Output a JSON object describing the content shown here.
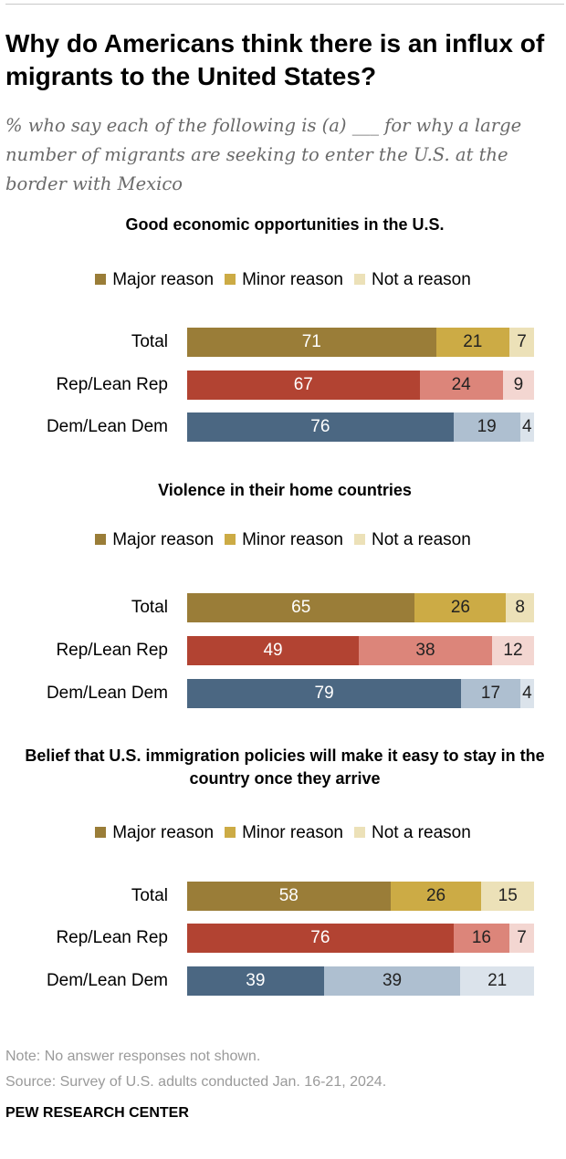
{
  "title": "Why do Americans think there is an influx of migrants to the United States?",
  "subtitle": "% who say each of the following is (a) ___ for why a large number of migrants are seeking to enter the U.S. at the border with Mexico",
  "legend": [
    "Major reason",
    "Minor reason",
    "Not a reason"
  ],
  "colors": {
    "total": [
      "#9a7d38",
      "#ccab45",
      "#ece1b8"
    ],
    "rep": [
      "#b24332",
      "#dc857a",
      "#f3d6d1"
    ],
    "dem": [
      "#4b6782",
      "#aebfd0",
      "#dbe3eb"
    ],
    "text_light": "#ffffff",
    "text_dark": "#222222"
  },
  "chart_data": [
    {
      "type": "bar",
      "stacked": true,
      "orientation": "horizontal",
      "title": "Good economic opportunities in the U.S.",
      "categories": [
        "Total",
        "Rep/Lean Rep",
        "Dem/Lean Dem"
      ],
      "series": [
        {
          "name": "Major reason",
          "values": [
            71,
            67,
            76
          ]
        },
        {
          "name": "Minor reason",
          "values": [
            21,
            24,
            19
          ]
        },
        {
          "name": "Not a reason",
          "values": [
            7,
            9,
            4
          ]
        }
      ],
      "xlim": [
        0,
        100
      ],
      "legend_position": "top"
    },
    {
      "type": "bar",
      "stacked": true,
      "orientation": "horizontal",
      "title": "Violence in their home countries",
      "categories": [
        "Total",
        "Rep/Lean Rep",
        "Dem/Lean Dem"
      ],
      "series": [
        {
          "name": "Major reason",
          "values": [
            65,
            49,
            79
          ]
        },
        {
          "name": "Minor reason",
          "values": [
            26,
            38,
            17
          ]
        },
        {
          "name": "Not a reason",
          "values": [
            8,
            12,
            4
          ]
        }
      ],
      "xlim": [
        0,
        100
      ],
      "legend_position": "top"
    },
    {
      "type": "bar",
      "stacked": true,
      "orientation": "horizontal",
      "title": "Belief that U.S. immigration policies will make it easy to stay in the country once they arrive",
      "categories": [
        "Total",
        "Rep/Lean Rep",
        "Dem/Lean Dem"
      ],
      "series": [
        {
          "name": "Major reason",
          "values": [
            58,
            76,
            39
          ]
        },
        {
          "name": "Minor reason",
          "values": [
            26,
            16,
            39
          ]
        },
        {
          "name": "Not a reason",
          "values": [
            15,
            7,
            21
          ]
        }
      ],
      "xlim": [
        0,
        100
      ],
      "legend_position": "top"
    }
  ],
  "note": "Note: No answer responses not shown.",
  "source": "Source: Survey of U.S. adults conducted Jan. 16-21, 2024.",
  "org": "PEW RESEARCH CENTER"
}
